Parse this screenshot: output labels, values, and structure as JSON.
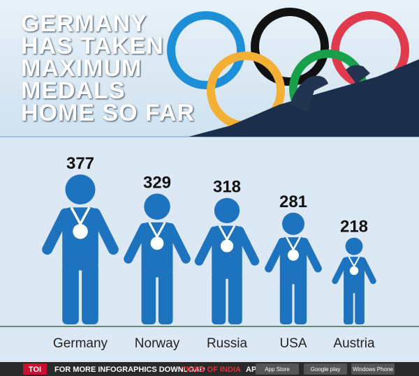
{
  "chart_data": {
    "type": "pictogram",
    "title": "GERMANY HAS TAKEN MAXIMUM MEDALS HOME SO FAR",
    "categories": [
      "Germany",
      "Norway",
      "Russia",
      "USA",
      "Austria"
    ],
    "values": [
      377,
      329,
      318,
      281,
      218
    ],
    "color": "#1e73be"
  },
  "footer": {
    "brand": "TOI",
    "text": "FOR MORE INFOGRAPHICS DOWNLOAD",
    "app_name": "TIMES OF INDIA",
    "app": "APP",
    "badges": [
      "App Store",
      "Google play",
      "Windows Phone"
    ]
  }
}
